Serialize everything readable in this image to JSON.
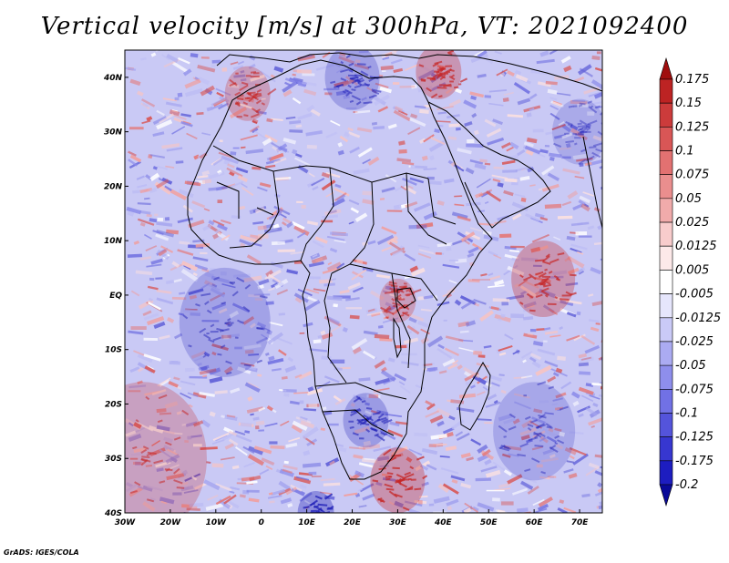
{
  "title": "Vertical velocity [m/s] at 300hPa, VT: 2021092400",
  "credit": "GrADS: IGES/COLA",
  "map": {
    "lon_range": [
      -30,
      75
    ],
    "lat_range": [
      -40,
      45
    ],
    "x_ticks": [
      "30W",
      "20W",
      "10W",
      "0",
      "10E",
      "20E",
      "30E",
      "40E",
      "50E",
      "60E",
      "70E"
    ],
    "y_ticks": [
      "40N",
      "30N",
      "20N",
      "10N",
      "EQ",
      "10S",
      "20S",
      "30S",
      "40S"
    ],
    "regions": [
      {
        "lon": -26,
        "lat": -30,
        "r": 14,
        "sign": 1,
        "a": 0.55
      },
      {
        "lon": 30,
        "lat": -34,
        "r": 6,
        "sign": 1,
        "a": 0.75
      },
      {
        "lon": 62,
        "lat": 3,
        "r": 7,
        "sign": 1,
        "a": 0.7
      },
      {
        "lon": 39,
        "lat": 41,
        "r": 5,
        "sign": 1,
        "a": 0.7
      },
      {
        "lon": -3,
        "lat": 37,
        "r": 5,
        "sign": 1,
        "a": 0.6
      },
      {
        "lon": 30,
        "lat": -1,
        "r": 4,
        "sign": 1,
        "a": 0.6
      },
      {
        "lon": 12,
        "lat": -40,
        "r": 4,
        "sign": -1,
        "a": 0.8
      },
      {
        "lon": 23,
        "lat": -23,
        "r": 5,
        "sign": -1,
        "a": 0.6
      },
      {
        "lon": -8,
        "lat": -5,
        "r": 10,
        "sign": -1,
        "a": 0.5
      },
      {
        "lon": 20,
        "lat": 40,
        "r": 6,
        "sign": -1,
        "a": 0.55
      },
      {
        "lon": 60,
        "lat": -25,
        "r": 9,
        "sign": -1,
        "a": 0.45
      },
      {
        "lon": 70,
        "lat": 30,
        "r": 6,
        "sign": -1,
        "a": 0.4
      }
    ]
  },
  "colorbar": {
    "levels": [
      "0.175",
      "0.15",
      "0.125",
      "0.1",
      "0.075",
      "0.05",
      "0.025",
      "0.0125",
      "0.005",
      "-0.005",
      "-0.0125",
      "-0.025",
      "-0.05",
      "-0.075",
      "-0.1",
      "-0.125",
      "-0.175",
      "-0.2"
    ],
    "colors": [
      "#a00e0e",
      "#bd2323",
      "#cc3b3b",
      "#d95656",
      "#e27171",
      "#ea8e8e",
      "#f1abab",
      "#f8cccc",
      "#fde9e9",
      "#ffffff",
      "#e6e6fc",
      "#cacaf7",
      "#ababf2",
      "#8e8eec",
      "#7171e5",
      "#5454db",
      "#3737d0",
      "#1d1dc0",
      "#0a0a98"
    ]
  }
}
